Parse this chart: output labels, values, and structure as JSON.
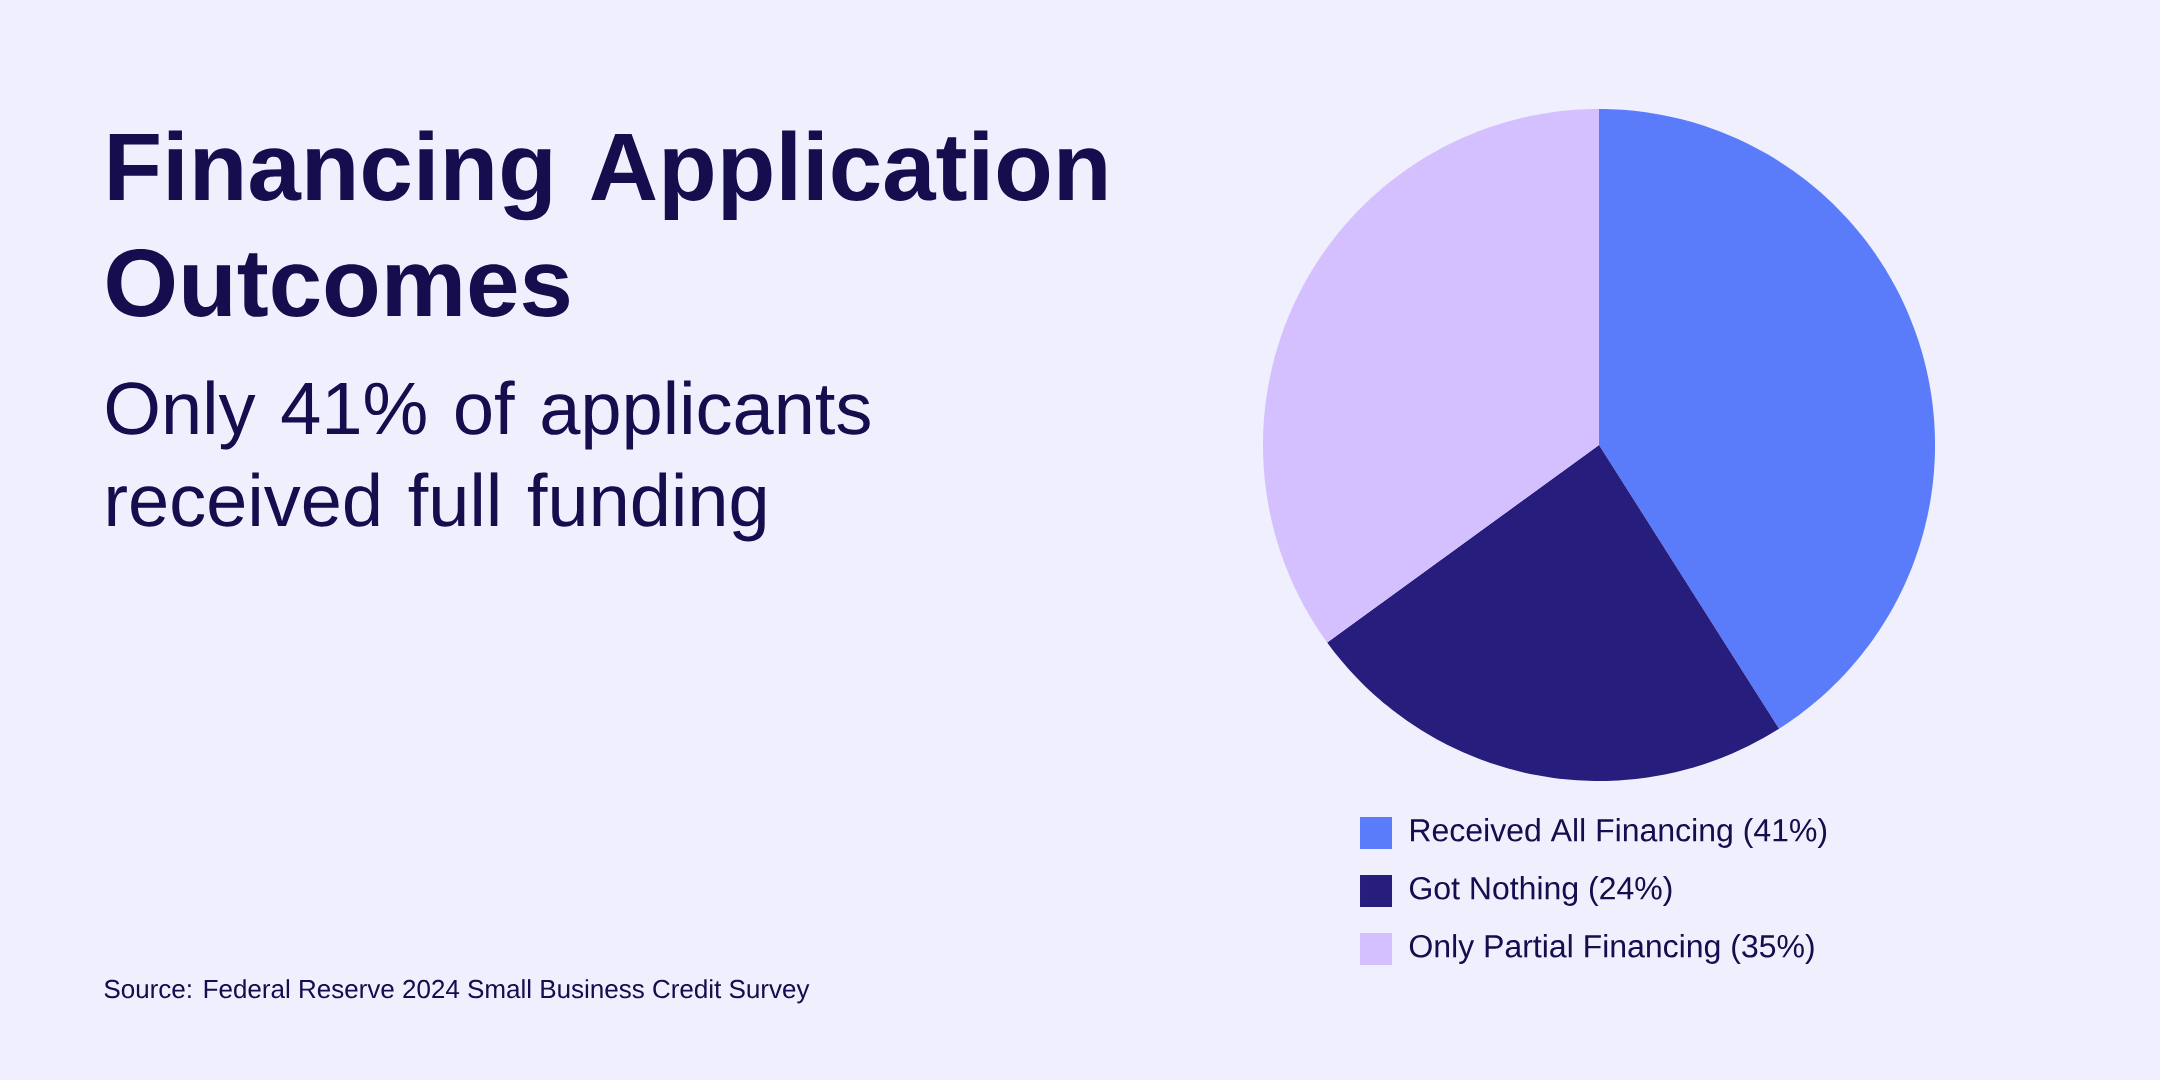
{
  "chart_data": {
    "type": "pie",
    "title": "Financing Application Outcomes",
    "subtitle": "Only 41% of applicants received full funding",
    "categories": [
      "Received All Financing (41%)",
      "Got Nothing (24%)",
      "Only Partial Financing (35%)"
    ],
    "values": [
      41,
      24,
      35
    ],
    "colors": [
      "#5b7cfa",
      "#271d7d",
      "#d4bfff"
    ],
    "legend": "bottom",
    "annotations": [
      "Source: Federal Reserve 2024 Small Business Credit Survey"
    ]
  }
}
